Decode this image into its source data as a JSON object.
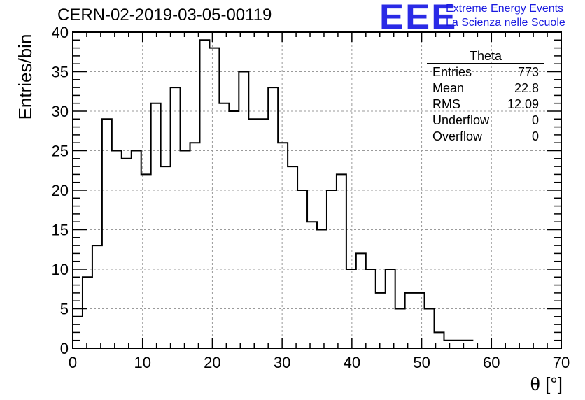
{
  "header": {
    "run_title": "CERN-02-2019-03-05-00119",
    "logo_mark": "EEE",
    "logo_line1": "Extreme Energy Events",
    "logo_line2": "La Scienza nelle Scuole",
    "logo_color": "#2a2ae6"
  },
  "stats_box": {
    "title": "Theta",
    "rows": [
      {
        "label": "Entries",
        "value": "773"
      },
      {
        "label": "Mean",
        "value": "22.8"
      },
      {
        "label": "RMS",
        "value": "12.09"
      },
      {
        "label": "Underflow",
        "value": "0"
      },
      {
        "label": "Overflow",
        "value": "0"
      }
    ]
  },
  "chart_data": {
    "type": "bar",
    "histogram": true,
    "title": "CERN-02-2019-03-05-00119",
    "xlabel": "θ [°]",
    "ylabel": "Entries/bin",
    "xlim": [
      0,
      70
    ],
    "ylim": [
      0,
      40
    ],
    "xticks": [
      0,
      10,
      20,
      30,
      40,
      50,
      60,
      70
    ],
    "yticks": [
      0,
      5,
      10,
      15,
      20,
      25,
      30,
      35,
      40
    ],
    "grid": true,
    "bin_width": 1.4,
    "values": [
      4,
      9,
      13,
      29,
      25,
      24,
      25,
      22,
      31,
      23,
      33,
      25,
      26,
      39,
      38,
      31,
      30,
      35,
      29,
      29,
      33,
      26,
      23,
      20,
      16,
      15,
      20,
      22,
      10,
      12,
      10,
      7,
      10,
      5,
      7,
      7,
      5,
      2,
      1,
      1,
      1,
      0,
      0,
      0,
      0,
      0,
      0,
      0,
      0,
      0
    ],
    "line_color": "#000000",
    "grid_color": "#9a9a9a"
  }
}
